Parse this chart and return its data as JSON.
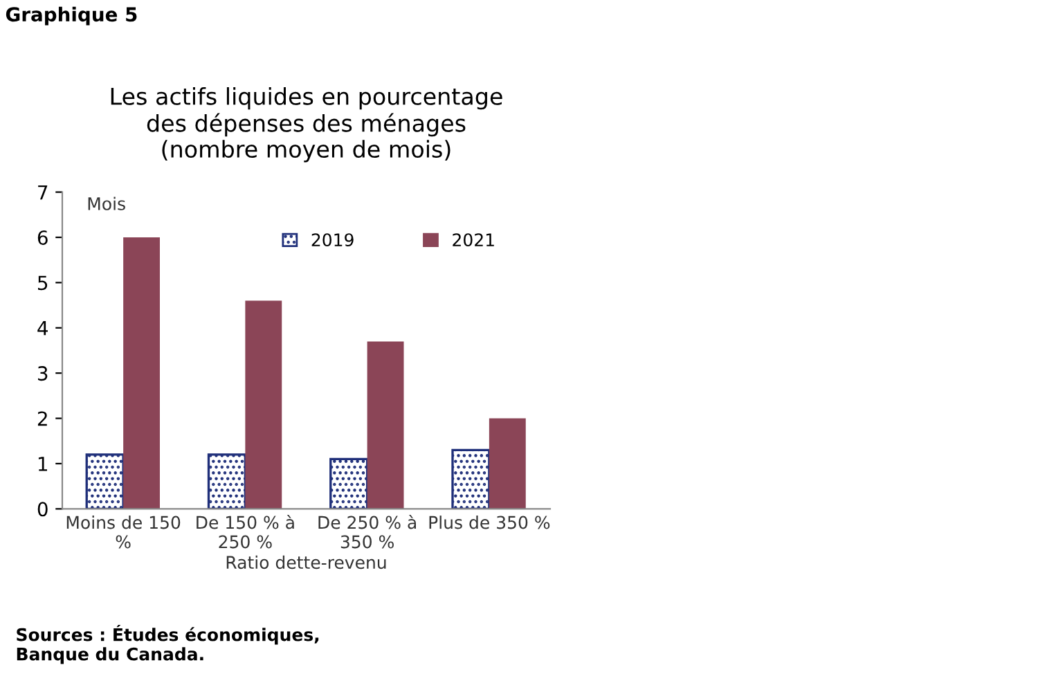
{
  "chart_data": {
    "type": "bar",
    "title": "Les actifs liquides en pourcentage\ndes dépenses des ménages\n(nombre moyen de mois)",
    "ylabel": "Mois",
    "xlabel": "Ratio dette-revenu",
    "annotations": [
      "Graphique 5",
      "Sources : Études économiques,\nBanque du Canada."
    ],
    "categories": [
      "Moins de 150\n%",
      "De 150 % à\n250 %",
      "De 250 % à\n350 %",
      "Plus de 350 %"
    ],
    "series": [
      {
        "name": "2019",
        "color": "#1f2f7a",
        "values": [
          1.2,
          1.2,
          1.1,
          1.3
        ]
      },
      {
        "name": "2021",
        "color": "#8b4557",
        "values": [
          6.0,
          4.6,
          3.7,
          2.0
        ]
      }
    ],
    "ylim": [
      0,
      7
    ],
    "yticks": [
      0,
      1,
      2,
      3,
      4,
      5,
      6,
      7
    ],
    "grid": false,
    "legend": "top right"
  }
}
